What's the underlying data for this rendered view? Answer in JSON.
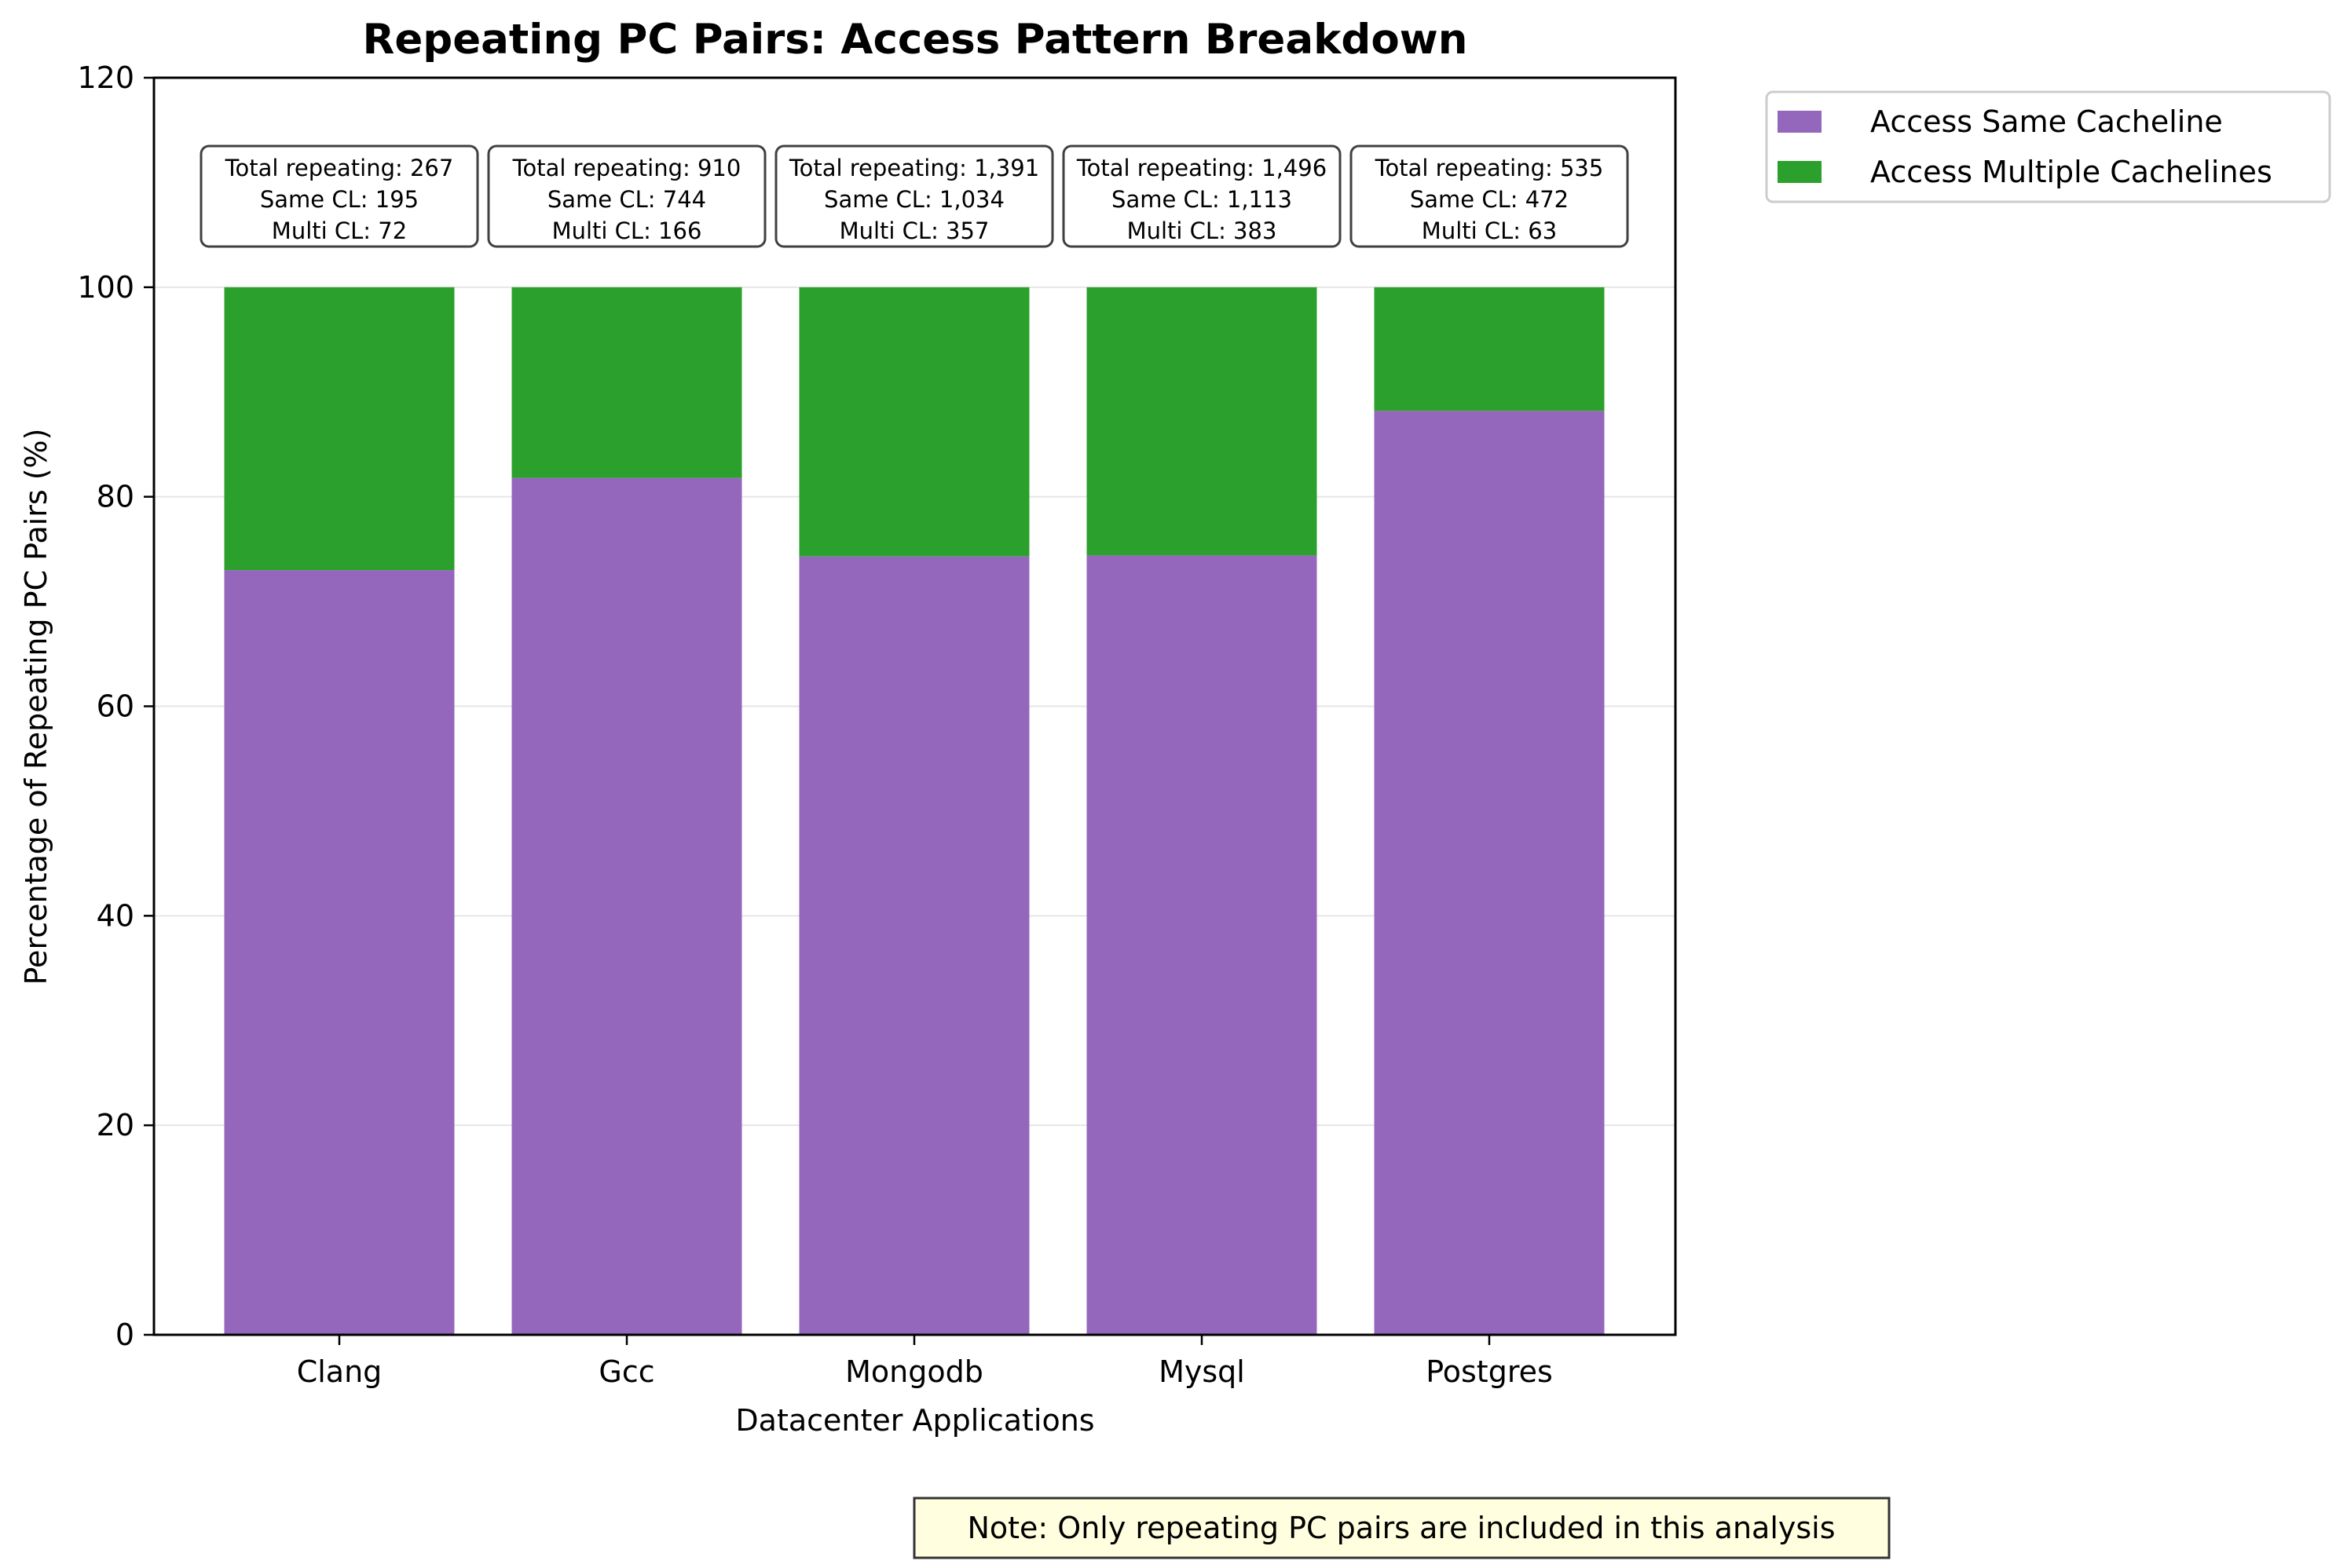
{
  "chart_data": {
    "type": "bar",
    "stacked": true,
    "title": "Repeating PC Pairs: Access Pattern Breakdown",
    "xlabel": "Datacenter Applications",
    "ylabel": "Percentage of Repeating PC Pairs (%)",
    "ylim": [
      0,
      120
    ],
    "yticks": [
      0,
      20,
      40,
      60,
      80,
      100,
      120
    ],
    "grid": "horizontal",
    "legend_position": "outside-top-right",
    "categories": [
      "Clang",
      "Gcc",
      "Mongodb",
      "Mysql",
      "Postgres"
    ],
    "series": [
      {
        "name": "Access Same Cacheline",
        "color": "#9467bd",
        "values": [
          73.0,
          81.8,
          74.3,
          74.4,
          88.2
        ]
      },
      {
        "name": "Access Multiple Cachelines",
        "color": "#2ca02c",
        "values": [
          27.0,
          18.2,
          25.7,
          25.6,
          11.8
        ]
      }
    ],
    "annotations": [
      {
        "total": "Total repeating: 267",
        "same": "Same CL: 195",
        "multi": "Multi CL: 72"
      },
      {
        "total": "Total repeating: 910",
        "same": "Same CL: 744",
        "multi": "Multi CL: 166"
      },
      {
        "total": "Total repeating: 1,391",
        "same": "Same CL: 1,034",
        "multi": "Multi CL: 357"
      },
      {
        "total": "Total repeating: 1,496",
        "same": "Same CL: 1,113",
        "multi": "Multi CL: 383"
      },
      {
        "total": "Total repeating: 535",
        "same": "Same CL: 472",
        "multi": "Multi CL: 63"
      }
    ],
    "note": "Note: Only repeating PC pairs are included in this analysis"
  }
}
